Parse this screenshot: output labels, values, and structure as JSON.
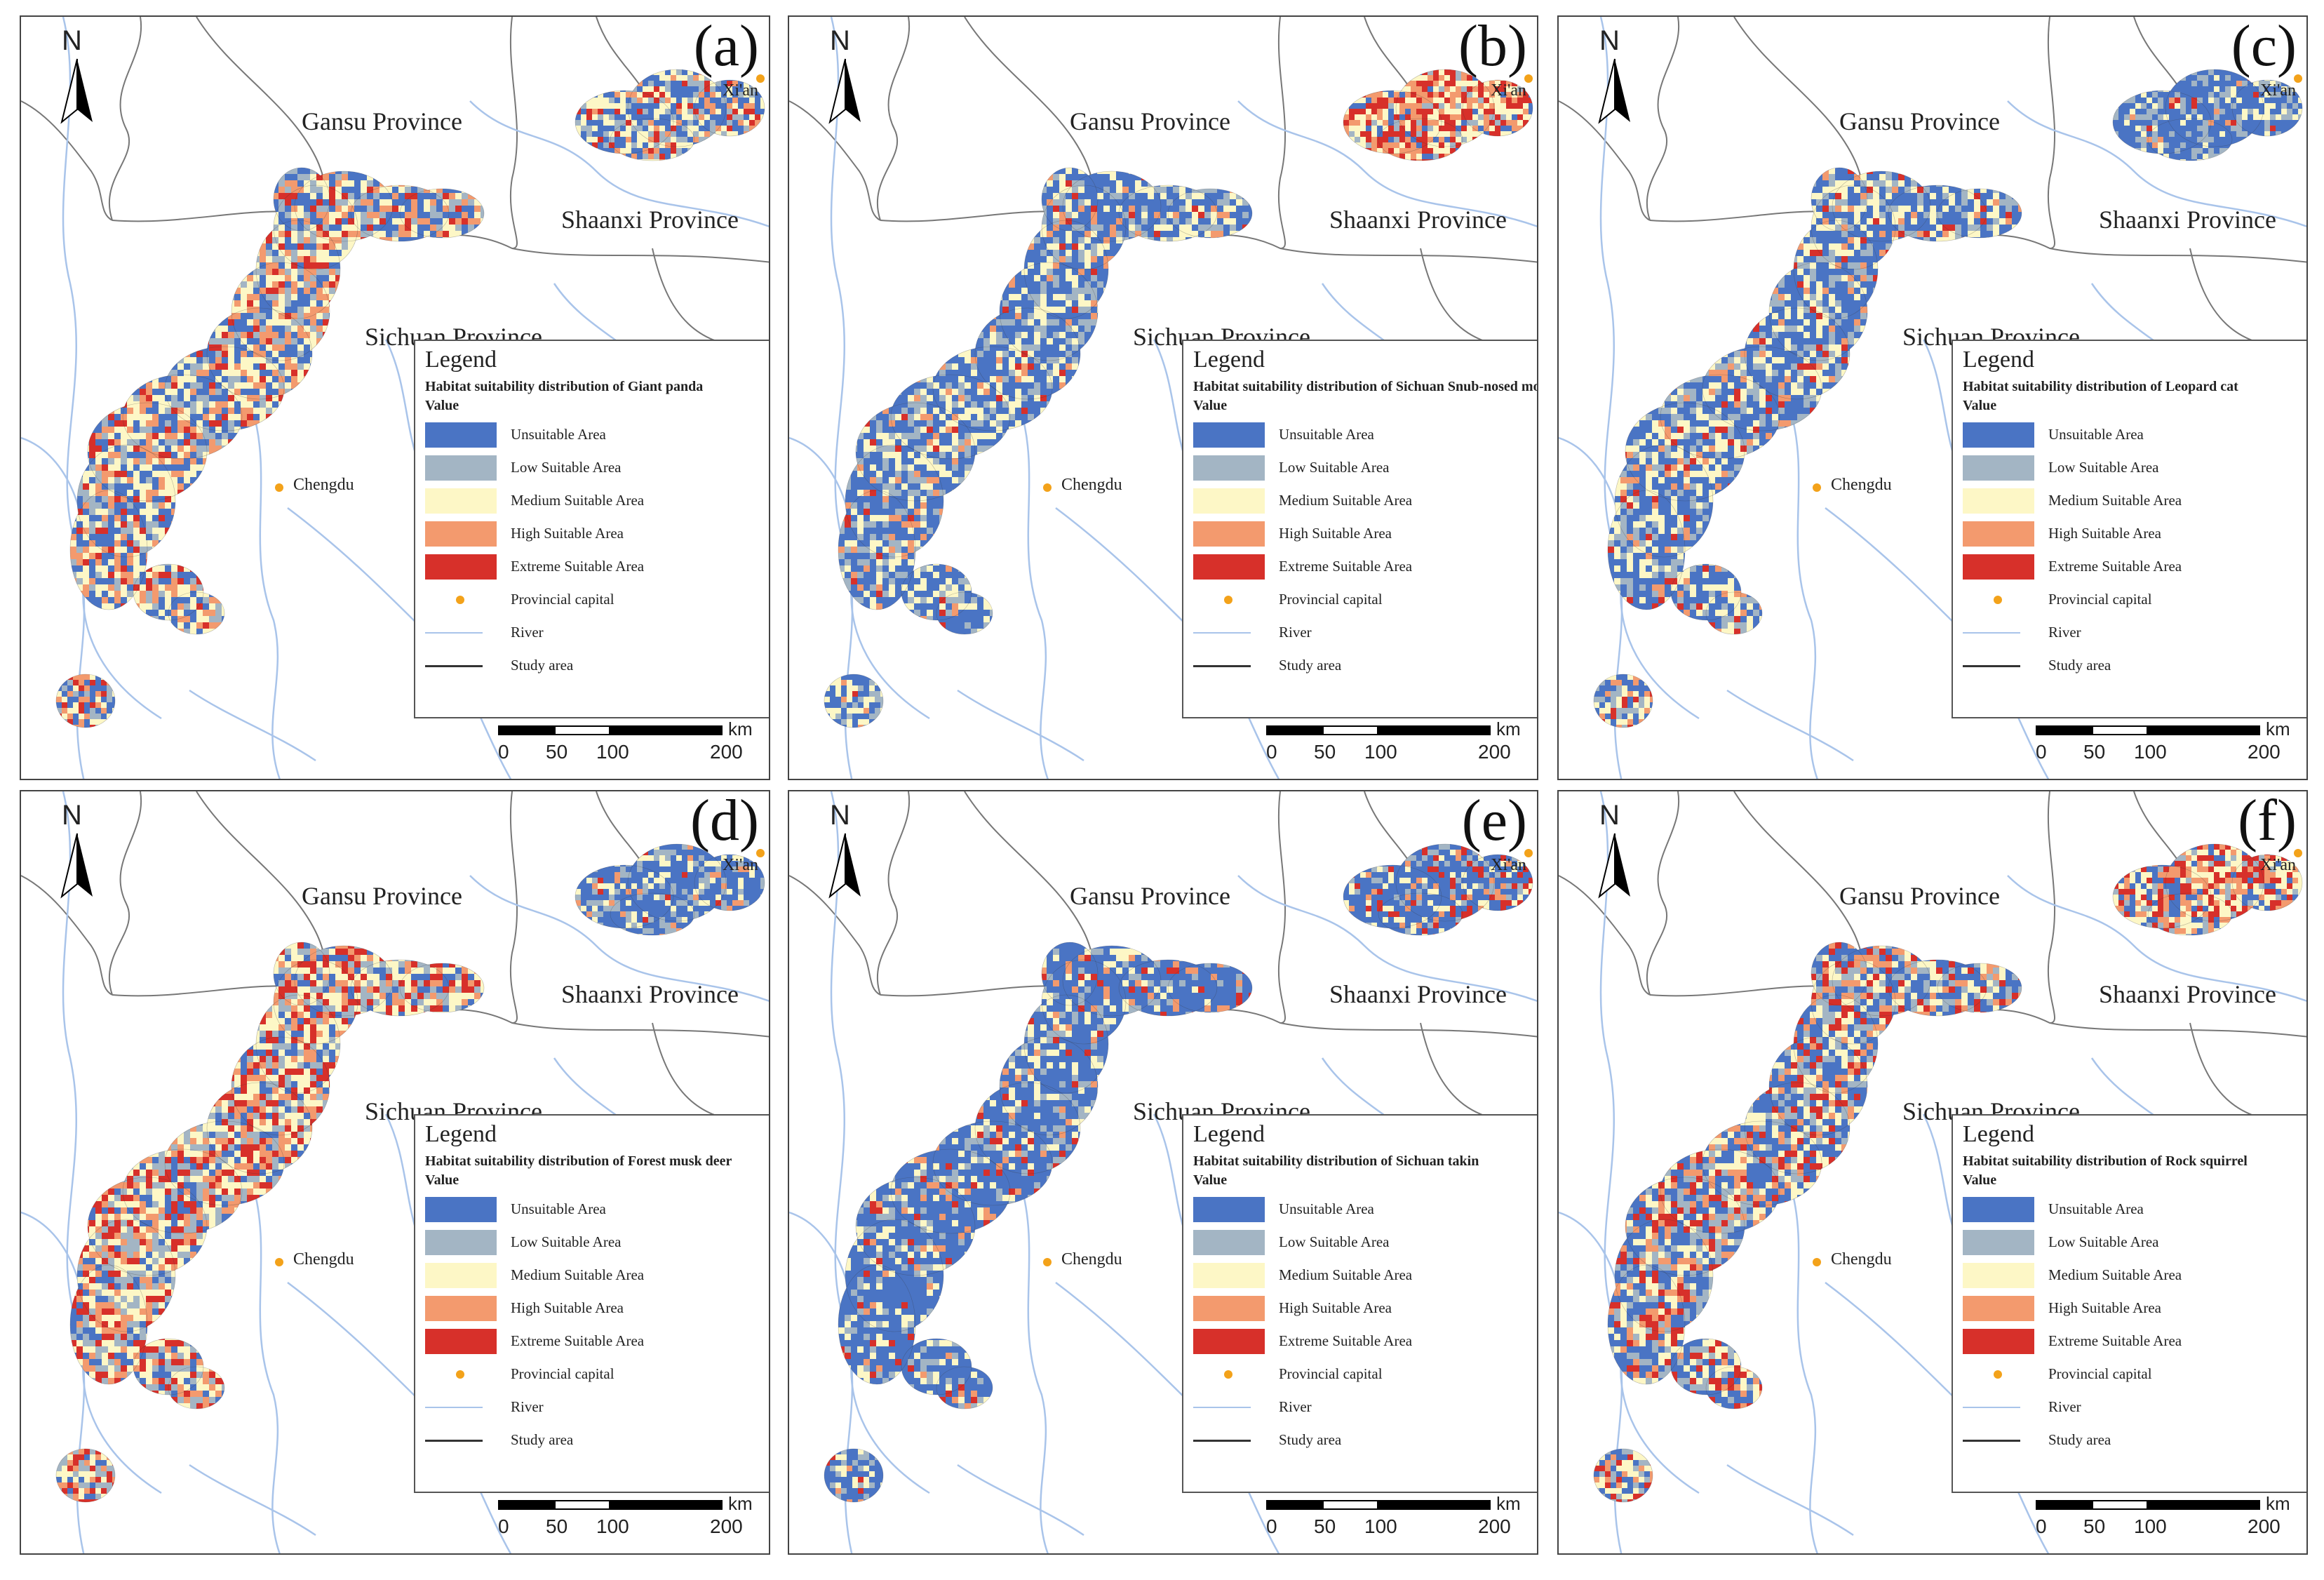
{
  "colors": {
    "unsuitable": "#4a74c4",
    "low": "#a3b5c4",
    "medium": "#fdf7c6",
    "high": "#f39a6e",
    "extreme": "#d7302a",
    "capital": "#f3a21a",
    "river": "#a9c4ea",
    "study_line": "#333333",
    "boundary": "#777777"
  },
  "map_labels": {
    "gansu": "Gansu Province",
    "shaanxi": "Shaanxi Province",
    "sichuan": "Sichuan Province",
    "chengdu": "Chengdu",
    "xian": "Xi'an",
    "north": "N"
  },
  "legend_common": {
    "title": "Legend",
    "value_label": "Value",
    "classes": [
      {
        "label": "Unsuitable Area",
        "color_key": "unsuitable"
      },
      {
        "label": "Low Suitable Area",
        "color_key": "low"
      },
      {
        "label": "Medium Suitable Area",
        "color_key": "medium"
      },
      {
        "label": "High Suitable Area",
        "color_key": "high"
      },
      {
        "label": "Extreme Suitable Area",
        "color_key": "extreme"
      }
    ],
    "capital_label": "Provincial capital",
    "river_label": "River",
    "study_label": "Study area"
  },
  "scale_bar": {
    "ticks": [
      "0",
      "50",
      "100",
      "200"
    ],
    "unit": "km"
  },
  "panels": [
    {
      "label": "(a)",
      "subtitle": "Habitat suitability distribution of Giant panda",
      "dominant": "mixed",
      "main_weights": [
        0.28,
        0.16,
        0.26,
        0.2,
        0.1
      ],
      "ne_weights": [
        0.38,
        0.2,
        0.22,
        0.12,
        0.08
      ]
    },
    {
      "label": "(b)",
      "subtitle": "Habitat suitability distribution of Sichuan Snub-nosed monkey",
      "dominant": "blue",
      "main_weights": [
        0.5,
        0.18,
        0.22,
        0.07,
        0.03
      ],
      "ne_weights": [
        0.08,
        0.08,
        0.3,
        0.22,
        0.32
      ]
    },
    {
      "label": "(c)",
      "subtitle": "Habitat suitability distribution of Leopard cat",
      "dominant": "blue",
      "main_weights": [
        0.46,
        0.16,
        0.24,
        0.08,
        0.06
      ],
      "ne_weights": [
        0.62,
        0.22,
        0.12,
        0.03,
        0.01
      ]
    },
    {
      "label": "(d)",
      "subtitle": "Habitat suitability distribution of Forest musk deer",
      "dominant": "red",
      "main_weights": [
        0.16,
        0.2,
        0.28,
        0.16,
        0.2
      ],
      "ne_weights": [
        0.62,
        0.2,
        0.14,
        0.03,
        0.01
      ]
    },
    {
      "label": "(e)",
      "subtitle": "Habitat suitability distribution of Sichuan takin",
      "dominant": "blue",
      "main_weights": [
        0.64,
        0.14,
        0.12,
        0.05,
        0.05
      ],
      "ne_weights": [
        0.52,
        0.12,
        0.14,
        0.1,
        0.12
      ]
    },
    {
      "label": "(f)",
      "subtitle": "Habitat suitability distribution of Rock squirrel",
      "dominant": "mixed",
      "main_weights": [
        0.34,
        0.18,
        0.22,
        0.12,
        0.14
      ],
      "ne_weights": [
        0.16,
        0.12,
        0.32,
        0.18,
        0.22
      ]
    }
  ]
}
